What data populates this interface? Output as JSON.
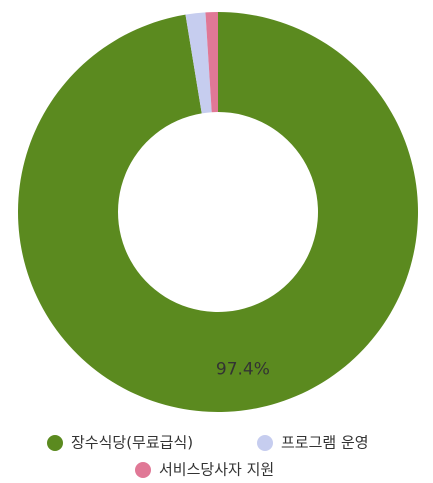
{
  "chart_data": {
    "type": "pie",
    "categories": [
      "장수식당(무료급식)",
      "프로그램 운영",
      "서비스당사자 지원"
    ],
    "values": [
      97.4,
      1.6,
      1.0
    ],
    "value_labels": [
      "97.4%",
      null,
      null
    ],
    "colors": [
      "#5b8a1f",
      "#c6cdef",
      "#e07896"
    ],
    "donut": true
  }
}
